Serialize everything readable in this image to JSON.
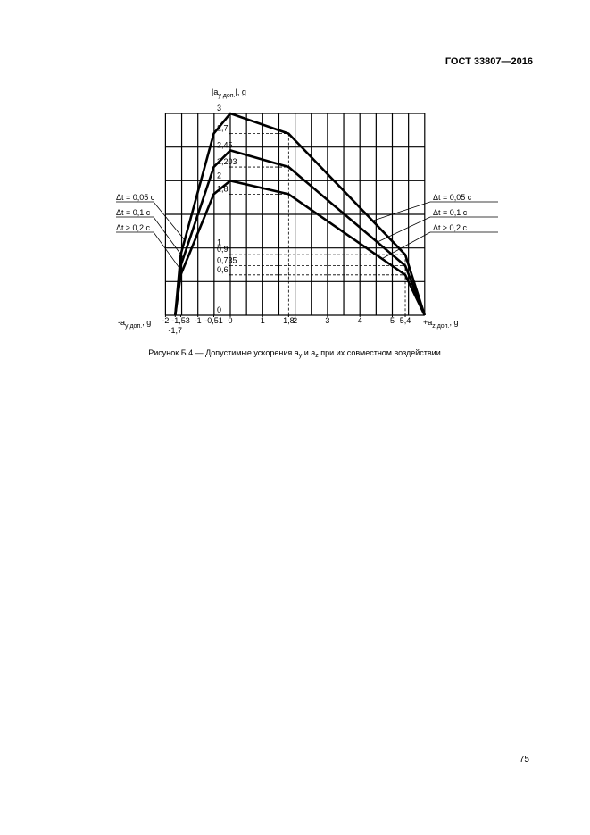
{
  "header": "ГОСТ 33807—2016",
  "chart_data": {
    "type": "line",
    "ylabel": {
      "main": "|a",
      "sub": "y доп.",
      "end": "|, g"
    },
    "xlabel_left": {
      "main": "-a",
      "sub": "y доп.",
      "end": ", g"
    },
    "xlabel_right": {
      "main": "+a",
      "sub": "z доп.",
      "end": ", g"
    },
    "x": [
      -1.7,
      -1.53,
      -0.51,
      0,
      1.8,
      5.4,
      6
    ],
    "series": [
      {
        "name": "Δt = 0,05 с",
        "color": "#000000",
        "values": [
          0,
          0.9,
          2.7,
          3,
          2.7,
          0.9,
          0
        ]
      },
      {
        "name": "Δt = 0,1 с",
        "color": "#000000",
        "values": [
          0,
          0.735,
          2.203,
          2.45,
          2.203,
          0.735,
          0
        ]
      },
      {
        "name": "Δt ≥ 0,2 с",
        "color": "#000000",
        "values": [
          0,
          0.6,
          1.8,
          2,
          1.8,
          0.6,
          0
        ]
      }
    ],
    "xlim": [
      -2,
      6
    ],
    "ylim": [
      0,
      3
    ],
    "xticks": [
      -2,
      {
        "value": -1.7,
        "label": "-1,7"
      },
      {
        "value": -1.53,
        "label": "-1,53"
      },
      -1,
      {
        "value": -0.51,
        "label": "-0,51"
      },
      0,
      1,
      {
        "value": 1.8,
        "label": "1,8"
      },
      2,
      3,
      4,
      5,
      {
        "value": 5.4,
        "label": "5,4"
      }
    ],
    "yticks": [
      0,
      {
        "value": 0.6,
        "label": "0,6"
      },
      {
        "value": 0.735,
        "label": "0,735"
      },
      {
        "value": 0.9,
        "label": "0,9"
      },
      1,
      {
        "value": 1.8,
        "label": "1,8"
      },
      2,
      {
        "value": 2.203,
        "label": "2,203"
      },
      {
        "value": 2.45,
        "label": "2,45"
      },
      {
        "value": 2.7,
        "label": "2,7"
      },
      3
    ],
    "grid": true
  },
  "caption": [
    "Рисунок Б.4 — Допустимые ускорения a",
    "y",
    " и a",
    "z",
    " при их совместном воздействии"
  ],
  "page_number": "75"
}
